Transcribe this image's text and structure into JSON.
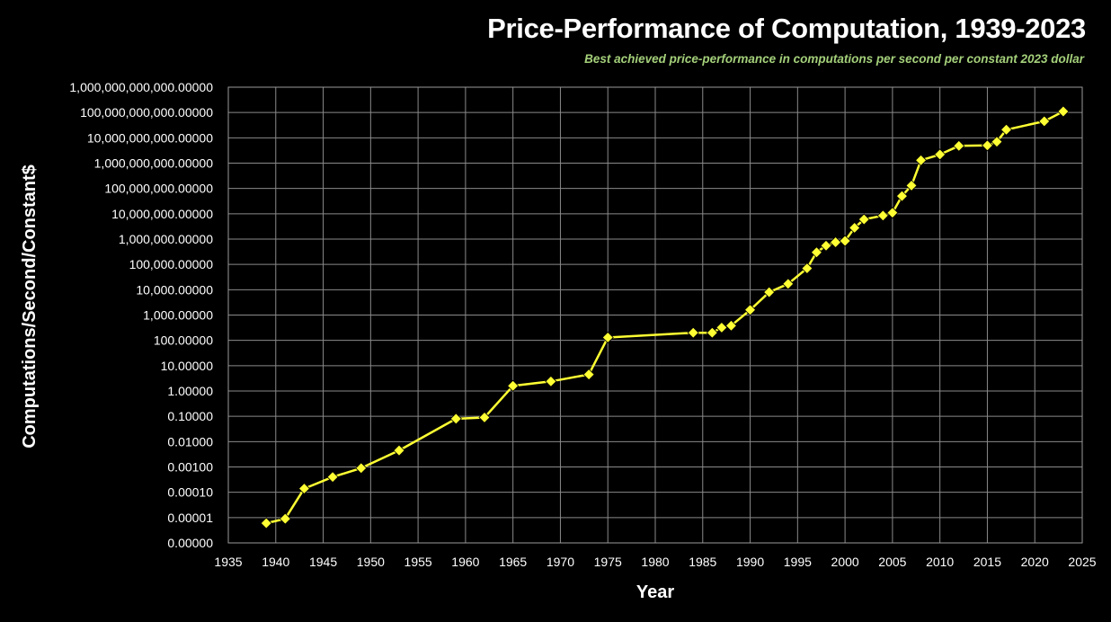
{
  "chart_data": {
    "type": "line",
    "title": "Price-Performance of Computation, 1939-2023",
    "subtitle": "Best achieved price-performance in computations per second per constant 2023 dollar",
    "xlabel": "Year",
    "ylabel": "Computations/Second/Constant$",
    "x_scale": "linear",
    "y_scale": "log",
    "xlim": [
      1935,
      2025
    ],
    "ylim": [
      1e-06,
      1000000000000
    ],
    "grid": true,
    "legend": "none",
    "x_ticks": [
      1935,
      1940,
      1945,
      1950,
      1955,
      1960,
      1965,
      1970,
      1975,
      1980,
      1985,
      1990,
      1995,
      2000,
      2005,
      2010,
      2015,
      2020,
      2025
    ],
    "x_tick_labels": [
      "1935",
      "1940",
      "1945",
      "1950",
      "1955",
      "1960",
      "1965",
      "1970",
      "1975",
      "1980",
      "1985",
      "1990",
      "1995",
      "2000",
      "2005",
      "2010",
      "2015",
      "2020",
      "2025"
    ],
    "y_ticks": [
      1e-06,
      1e-05,
      0.0001,
      0.001,
      0.01,
      0.1,
      1,
      10,
      100,
      1000,
      10000,
      100000,
      1000000,
      10000000,
      100000000,
      1000000000,
      10000000000,
      100000000000,
      1000000000000
    ],
    "y_tick_labels": [
      "0.00000",
      "0.00001",
      "0.00010",
      "0.00100",
      "0.01000",
      "0.10000",
      "1.00000",
      "10.00000",
      "100.00000",
      "1,000.00000",
      "10,000.00000",
      "100,000.00000",
      "1,000,000.00000",
      "10,000,000.00000",
      "100,000,000.00000",
      "1,000,000,000.00000",
      "10,000,000,000.00000",
      "100,000,000,000.00000",
      "1,000,000,000,000.00000"
    ],
    "series": [
      {
        "color": "#ffff33",
        "marker": "diamond",
        "points": [
          [
            1939,
            6e-06
          ],
          [
            1941,
            9e-06
          ],
          [
            1943,
            0.00014
          ],
          [
            1946,
            0.0004
          ],
          [
            1949,
            0.0009
          ],
          [
            1953,
            0.0045
          ],
          [
            1959,
            0.08
          ],
          [
            1962,
            0.09
          ],
          [
            1965,
            1.6
          ],
          [
            1969,
            2.4
          ],
          [
            1973,
            4.5
          ],
          [
            1975,
            130
          ],
          [
            1984,
            200
          ],
          [
            1986,
            200
          ],
          [
            1987,
            320
          ],
          [
            1988,
            380
          ],
          [
            1990,
            1600
          ],
          [
            1992,
            8000
          ],
          [
            1994,
            17000
          ],
          [
            1996,
            70000
          ],
          [
            1997,
            300000
          ],
          [
            1998,
            550000
          ],
          [
            1999,
            750000
          ],
          [
            2000,
            850000
          ],
          [
            2001,
            2800000
          ],
          [
            2002,
            6000000
          ],
          [
            2004,
            8500000
          ],
          [
            2005,
            11000000
          ],
          [
            2006,
            50000000
          ],
          [
            2007,
            130000000
          ],
          [
            2008,
            1300000000
          ],
          [
            2010,
            2200000000
          ],
          [
            2012,
            4800000000
          ],
          [
            2015,
            5000000000
          ],
          [
            2016,
            7000000000
          ],
          [
            2017,
            21000000000
          ],
          [
            2021,
            45000000000
          ],
          [
            2023,
            110000000000
          ]
        ]
      }
    ]
  }
}
